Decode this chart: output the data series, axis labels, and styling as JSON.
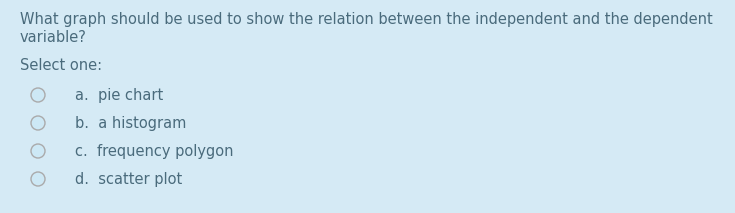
{
  "background_color": "#d5eaf5",
  "question_line1": "What graph should be used to show the relation between the independent and the dependent",
  "question_line2": "variable?",
  "select_label": "Select one:",
  "options": [
    "a.  pie chart",
    "b.  a histogram",
    "c.  frequency polygon",
    "d.  scatter plot"
  ],
  "text_color": "#4a6b7c",
  "font_size_question": 10.5,
  "font_size_options": 10.5,
  "font_size_select": 10.5,
  "circle_fill": "#cde8f5",
  "circle_edge_color": "#aaaaaa",
  "figsize": [
    7.35,
    2.13
  ],
  "dpi": 100
}
